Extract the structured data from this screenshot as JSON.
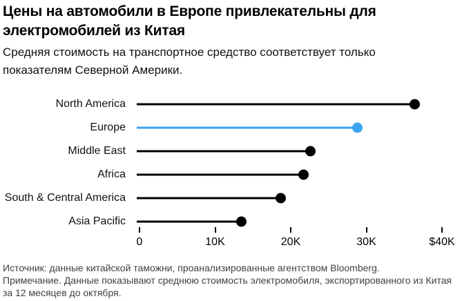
{
  "chart_data": {
    "type": "bar",
    "style": "lollipop",
    "orientation": "horizontal",
    "title": "Цены на автомобили в Европе привлекательны для электромобилей из Китая",
    "subtitle": "Средняя стоимость на транспортное средство соответствует только показателям Северной Америки.",
    "categories": [
      "North America",
      "Europe",
      "Middle East",
      "Africa",
      "South & Central America",
      "Asia Pacific"
    ],
    "values": [
      36400,
      28900,
      22800,
      21900,
      18900,
      13700
    ],
    "highlight_index": 1,
    "highlighted_category": "Europe",
    "x_axis": {
      "min": 0,
      "max": 40000,
      "tick_values": [
        0,
        10000,
        20000,
        30000,
        40000
      ],
      "tick_labels": [
        "0",
        "10K",
        "20K",
        "30K",
        "$40K"
      ]
    },
    "grid": false,
    "legend": "none",
    "colors": {
      "line_default": "#000000",
      "line_highlight": "#3ca3f0",
      "background": "#ffffff"
    },
    "source": "Источник: данные китайской таможни, проанализированные агентством Bloomberg.",
    "note": "Примечание. Данные показывают среднюю стоимость электромобиля, экспортированного из Китая за 12 месяцев до октября."
  }
}
